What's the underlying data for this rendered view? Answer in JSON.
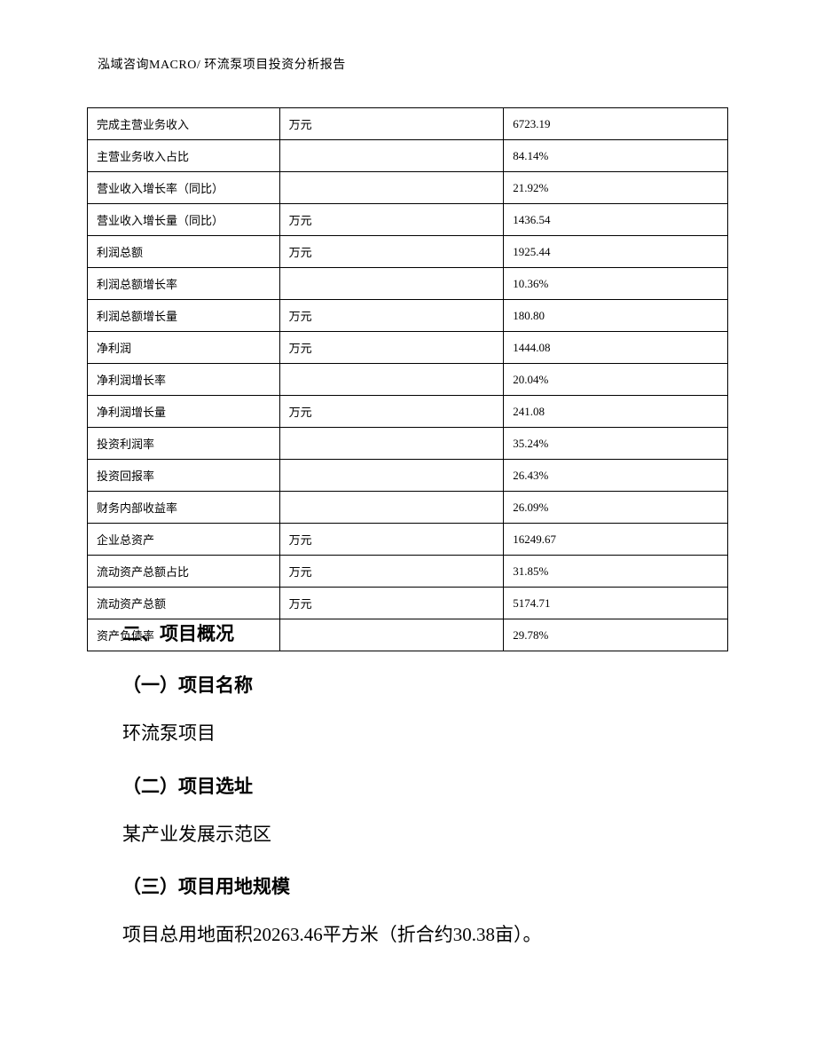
{
  "header": {
    "text": "泓域咨询MACRO/    环流泵项目投资分析报告"
  },
  "table": {
    "border_color": "#000000",
    "background_color": "#ffffff",
    "font_size": 13,
    "rows": [
      {
        "label": "完成主营业务收入",
        "unit": "万元",
        "value": "6723.19"
      },
      {
        "label": "主营业务收入占比",
        "unit": "",
        "value": "84.14%"
      },
      {
        "label": "营业收入增长率（同比）",
        "unit": "",
        "value": "21.92%"
      },
      {
        "label": "营业收入增长量（同比）",
        "unit": "万元",
        "value": "1436.54"
      },
      {
        "label": "利润总额",
        "unit": "万元",
        "value": "1925.44"
      },
      {
        "label": "利润总额增长率",
        "unit": "",
        "value": "10.36%"
      },
      {
        "label": "利润总额增长量",
        "unit": "万元",
        "value": "180.80"
      },
      {
        "label": "净利润",
        "unit": "万元",
        "value": "1444.08"
      },
      {
        "label": "净利润增长率",
        "unit": "",
        "value": "20.04%"
      },
      {
        "label": "净利润增长量",
        "unit": "万元",
        "value": "241.08"
      },
      {
        "label": "投资利润率",
        "unit": "",
        "value": "35.24%"
      },
      {
        "label": "投资回报率",
        "unit": "",
        "value": "26.43%"
      },
      {
        "label": "财务内部收益率",
        "unit": "",
        "value": "26.09%"
      },
      {
        "label": "企业总资产",
        "unit": "万元",
        "value": "16249.67"
      },
      {
        "label": "流动资产总额占比",
        "unit": "万元",
        "value": "31.85%"
      },
      {
        "label": "流动资产总额",
        "unit": "万元",
        "value": "5174.71"
      },
      {
        "label": "资产负债率",
        "unit": "",
        "value": "29.78%"
      }
    ]
  },
  "sections": {
    "main_title": "二、项目概况",
    "sub1_title": "（一）项目名称",
    "sub1_text": "环流泵项目",
    "sub2_title": "（二）项目选址",
    "sub2_text": "某产业发展示范区",
    "sub3_title": "（三）项目用地规模",
    "sub3_text": "项目总用地面积20263.46平方米（折合约30.38亩）。"
  }
}
